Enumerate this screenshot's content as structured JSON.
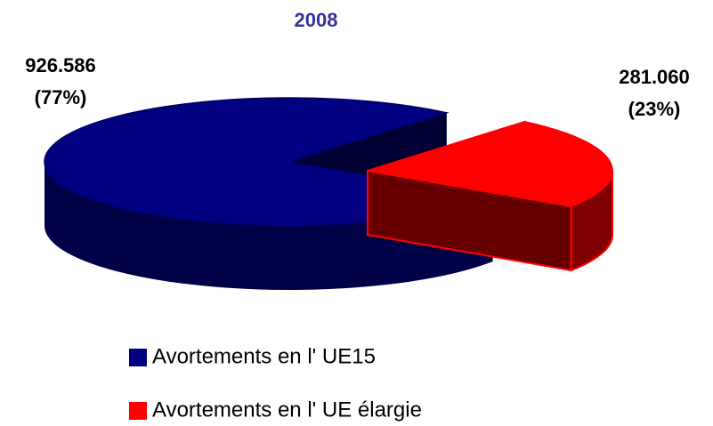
{
  "chart_data": {
    "type": "pie3d",
    "title": "2008",
    "categories": [
      "Avortements en l' UE15",
      "Avortements en l' UE élargie"
    ],
    "values": [
      926586,
      281060
    ],
    "value_labels": [
      "926.586",
      "281.060"
    ],
    "percentages": [
      77,
      23
    ],
    "percentage_labels": [
      "(77%)",
      "(23%)"
    ],
    "colors": [
      "#000080",
      "#ff0000"
    ],
    "legend": "bottom"
  }
}
